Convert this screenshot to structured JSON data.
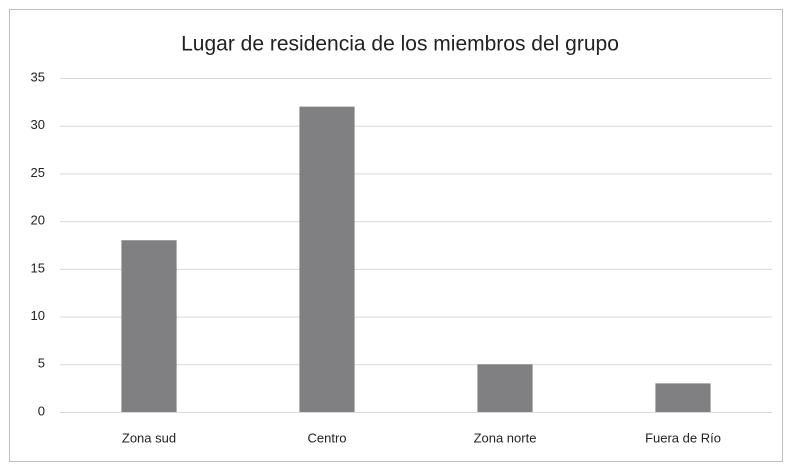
{
  "chart_data": {
    "type": "bar",
    "title": "Lugar de residencia de los miembros del grupo",
    "categories": [
      "Zona sud",
      "Centro",
      "Zona norte",
      "Fuera de Río"
    ],
    "values": [
      18,
      32,
      5,
      3
    ],
    "color": "#808083",
    "ylim": [
      0,
      35
    ],
    "yticks": [
      0,
      5,
      10,
      15,
      20,
      25,
      30,
      35
    ],
    "grid": true
  }
}
